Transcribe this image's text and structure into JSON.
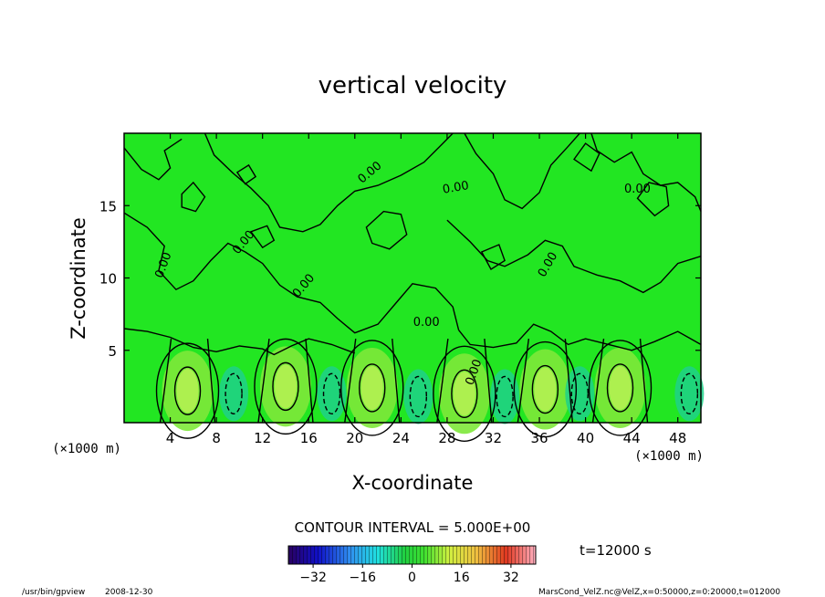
{
  "chart_data": {
    "type": "contour",
    "title": "vertical velocity",
    "xlabel": "X-coordinate",
    "ylabel": "Z-coordinate",
    "x_unit": "(×1000 m)",
    "z_unit": "(×1000 m)",
    "xlim": [
      0,
      50
    ],
    "ylim": [
      0,
      20
    ],
    "x_ticks": [
      4,
      8,
      12,
      16,
      20,
      24,
      28,
      32,
      36,
      40,
      44,
      48
    ],
    "y_ticks": [
      5,
      10,
      15
    ],
    "contour_label": "0.00",
    "contour_interval_label": "CONTOUR INTERVAL = 5.000E+00",
    "time_label": "t=12000 s",
    "colorbar": {
      "min": -40,
      "max": 40,
      "ticks": [
        -32,
        -16,
        0,
        16,
        32
      ],
      "tick_labels": [
        "−32",
        "−16",
        "0",
        "16",
        "32"
      ]
    },
    "updraft_centers": [
      {
        "x": 5.5,
        "z": 2.2
      },
      {
        "x": 14.0,
        "z": 2.5
      },
      {
        "x": 21.5,
        "z": 2.4
      },
      {
        "x": 29.5,
        "z": 2.0
      },
      {
        "x": 36.5,
        "z": 2.3
      },
      {
        "x": 43.0,
        "z": 2.4
      }
    ],
    "downdraft_centers": [
      {
        "x": 9.5,
        "z": 2.0
      },
      {
        "x": 18.0,
        "z": 2.0
      },
      {
        "x": 25.5,
        "z": 1.8
      },
      {
        "x": 33.0,
        "z": 1.8
      },
      {
        "x": 39.5,
        "z": 2.0
      },
      {
        "x": 49.0,
        "z": 2.0
      }
    ]
  },
  "footer": {
    "program": "/usr/bin/gpview",
    "date": "2008-12-30",
    "source": "MarsCond_VelZ.nc@VelZ,x=0:50000,z=0:20000,t=012000"
  },
  "colors": {
    "field_background": "#22e622",
    "contour": "#000000",
    "updraft": "#a8e840",
    "downdraft": "#1ec8a0"
  }
}
